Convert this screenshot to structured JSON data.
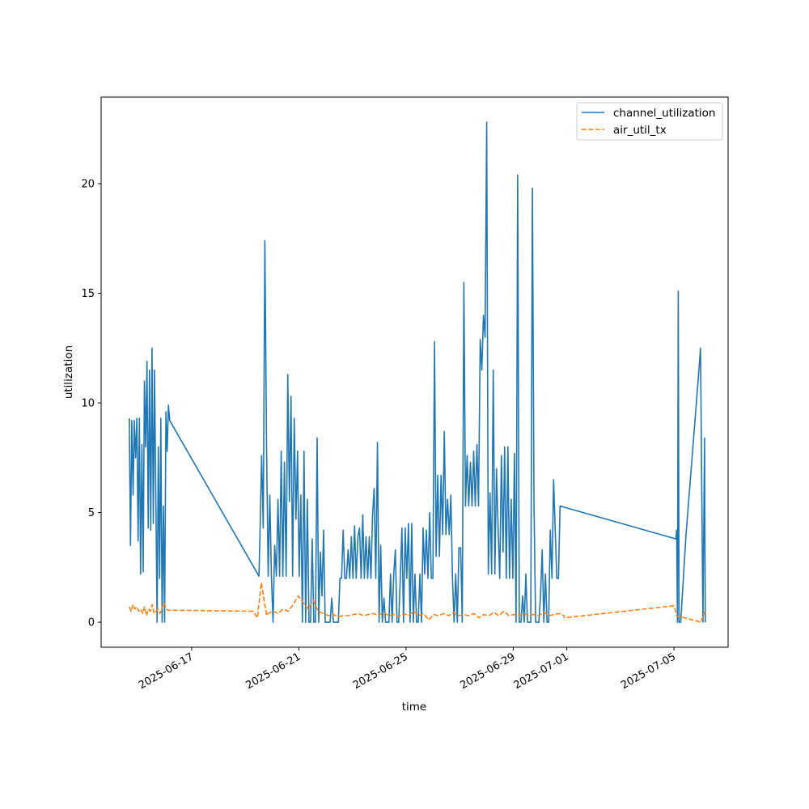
{
  "chart_data": {
    "type": "line",
    "title": "",
    "xlabel": "time",
    "ylabel": "utilization",
    "x_unit": "days since 2025-06-17",
    "xlim": [
      -3.38,
      20.02
    ],
    "ylim": [
      -1.14,
      23.95
    ],
    "grid": false,
    "legend_position": "top-right",
    "x_ticks": [
      {
        "value": 0,
        "label": "2025-06-17"
      },
      {
        "value": 4,
        "label": "2025-06-21"
      },
      {
        "value": 8,
        "label": "2025-06-25"
      },
      {
        "value": 12,
        "label": "2025-06-29"
      },
      {
        "value": 14,
        "label": "2025-07-01"
      },
      {
        "value": 18,
        "label": "2025-07-05"
      }
    ],
    "y_ticks": [
      {
        "value": 0,
        "label": "0"
      },
      {
        "value": 5,
        "label": "5"
      },
      {
        "value": 10,
        "label": "10"
      },
      {
        "value": 15,
        "label": "15"
      },
      {
        "value": 20,
        "label": "20"
      }
    ],
    "series": [
      {
        "name": "channel_utilization",
        "color": "#1f77b4",
        "style": "solid",
        "segments": [
          {
            "start": -2.33,
            "end": -0.82,
            "values": [
              9.3,
              3.5,
              9.2,
              5.8,
              9.2,
              7.5,
              9.3,
              3.7,
              9.3,
              2.2,
              8.1,
              2.3,
              11.0,
              8.0,
              11.9,
              4.3,
              11.5,
              4.2,
              12.5,
              4.5,
              11.5,
              5.8,
              0,
              8.0,
              2.0,
              9.3,
              0,
              5.3,
              0,
              9.6,
              7.8,
              9.9,
              9.2
            ]
          },
          {
            "points": [
              [
                2.51,
                2.1
              ]
            ]
          },
          {
            "start": 2.55,
            "end": 13.75,
            "values": [
              4.1,
              7.6,
              4.3,
              17.4,
              8.0,
              2.1,
              5.8,
              2.1,
              0,
              3.5,
              2.1,
              5.6,
              2.1,
              7.8,
              2.1,
              7.3,
              2.1,
              11.3,
              5.5,
              10.3,
              2.1,
              9.3,
              4.7,
              7.8,
              2.1,
              5.8,
              0,
              7.8,
              0,
              5.6,
              0,
              0,
              3.8,
              0,
              0,
              8.4,
              0,
              3.2,
              1.2,
              4.2,
              0,
              0,
              0,
              0,
              1.1,
              0,
              0,
              0,
              0,
              2.0,
              2.0,
              4.2,
              2.0,
              2.0,
              3.3,
              2.0,
              3.9,
              2.0,
              4.4,
              2.0,
              3.9,
              4.3,
              2.0,
              4.9,
              2.0,
              3.9,
              2.0,
              3.9,
              2.0,
              4.9,
              6.1,
              2.0,
              8.2,
              0,
              3.5,
              0,
              1.1,
              0,
              0,
              0,
              2.2,
              0,
              2.2,
              3.3,
              0,
              0,
              2.0,
              4.3,
              0,
              4.3,
              2.0,
              4.5,
              0,
              4.5,
              0,
              2.2,
              0,
              0,
              2.2,
              0,
              4.3,
              2.2,
              4.2,
              2.0,
              5.0,
              2.0,
              2.0,
              12.8,
              3.0,
              6.7,
              3.0,
              6.7,
              4.0,
              8.7,
              4.0,
              5.6,
              4.0,
              5.8,
              2.0,
              0,
              2.2,
              0,
              3.4,
              3.4,
              0,
              15.5,
              5.3,
              7.6,
              5.3,
              7.3,
              5.3,
              7.8,
              5.3,
              8.1,
              5.3,
              12.9,
              11.5,
              14.0,
              13.0,
              22.8,
              2.2,
              5.9,
              2.2,
              11.5,
              2.2,
              7.0,
              4.3,
              2.0,
              7.6,
              3.2,
              8.0,
              2.0,
              8.0,
              2.0,
              5.6,
              2.0,
              7.7,
              0,
              20.4,
              0,
              0,
              1.2,
              0,
              2.2,
              0,
              0,
              0,
              19.8,
              5.3,
              0,
              0,
              0,
              1.2,
              3.3,
              0,
              2.2,
              0,
              0,
              4.2,
              2.0,
              6.5,
              4.2,
              2.0,
              2.0,
              5.3
            ]
          },
          {
            "points": [
              [
                18.07,
                3.8
              ],
              [
                18.1,
                4.2
              ],
              [
                18.13,
                0
              ],
              [
                18.16,
                15.1
              ],
              [
                18.19,
                0
              ],
              [
                18.25,
                0
              ],
              [
                18.45,
                4.0
              ],
              [
                18.9,
                11.0
              ],
              [
                18.99,
                12.5
              ],
              [
                19.08,
                0
              ],
              [
                19.14,
                8.4
              ],
              [
                19.17,
                0
              ]
            ]
          }
        ]
      },
      {
        "name": "air_util_tx",
        "color": "#ff7f0e",
        "style": "dashed",
        "segments": [
          {
            "start": -2.33,
            "end": -0.9,
            "values": [
              0.7,
              0.5,
              0.8,
              0.6,
              0.7,
              0.5,
              0.6,
              0.4,
              0.7,
              0.3,
              0.6,
              0.5,
              0.8,
              0.4,
              0.5,
              0.6,
              0.4,
              0.6,
              0.9,
              0.7,
              0.55
            ]
          },
          {
            "points": [
              [
                2.3,
                0.5
              ],
              [
                2.45,
                0.2
              ],
              [
                2.6,
                1.8
              ],
              [
                2.7,
                1.0
              ],
              [
                2.8,
                0.3
              ]
            ]
          },
          {
            "start": 2.85,
            "end": 13.9,
            "values": [
              0.4,
              0.5,
              0.4,
              0.6,
              0.5,
              0.8,
              1.2,
              0.9,
              0.6,
              1.0,
              0.5,
              0.4,
              0.3,
              0.35,
              0.25,
              0.3,
              0.3,
              0.35,
              0.4,
              0.3,
              0.35,
              0.4,
              0.3,
              0.45,
              0.3,
              0.35,
              0.25,
              0.4,
              0.3,
              0.5,
              0.3,
              0.4,
              0.1,
              0.35,
              0.3,
              0.4,
              0.3,
              0.45,
              0.3,
              0.35,
              0.3,
              0.4,
              0.2,
              0.35,
              0.3,
              0.45,
              0.3,
              0.5,
              0.3,
              0.35,
              0.3,
              0.4,
              0.3,
              0.35,
              0.3,
              0.45,
              0.3,
              0.35,
              0.4,
              0.3
            ]
          },
          {
            "points": [
              [
                13.9,
                0.2
              ],
              [
                18.0,
                0.75
              ],
              [
                18.1,
                0.3
              ],
              [
                19.0,
                0.0
              ],
              [
                19.15,
                0.5
              ]
            ]
          }
        ]
      }
    ]
  }
}
